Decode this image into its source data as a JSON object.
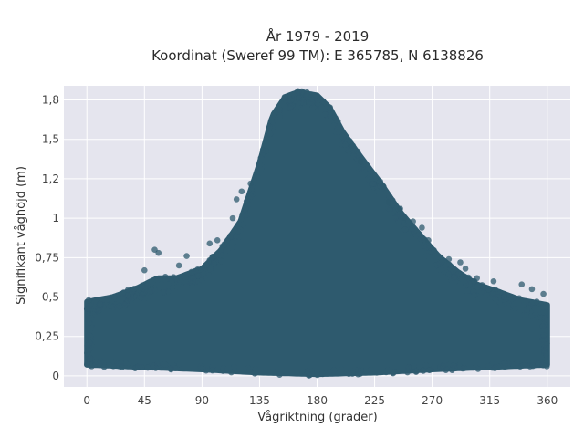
{
  "chart_data": {
    "type": "scatter",
    "title_line1": "År 1979 - 2019",
    "title_line2": "Koordinat (Sweref 99 TM): E 365785, N 6138826",
    "xlabel": "Vågriktning (grader)",
    "ylabel": "Signifikant våghöjd (m)",
    "xlim": [
      -18,
      378
    ],
    "ylim": [
      -0.07,
      1.84
    ],
    "x_ticks": [
      0,
      45,
      90,
      135,
      180,
      225,
      270,
      315,
      360
    ],
    "x_tick_labels": [
      "0",
      "45",
      "90",
      "135",
      "180",
      "225",
      "270",
      "315",
      "360"
    ],
    "y_ticks": [
      0,
      0.25,
      0.5,
      0.75,
      1,
      1.25,
      1.5,
      1.75
    ],
    "y_tick_labels": [
      "0",
      "0,25",
      "0,5",
      "0,75",
      "1",
      "1,2",
      "1,5",
      "1,8"
    ],
    "grid": true,
    "marker_color": "#2e5a6e",
    "background_color": "#e5e5ee",
    "upper_envelope": [
      [
        0,
        0.47
      ],
      [
        20,
        0.5
      ],
      [
        40,
        0.56
      ],
      [
        55,
        0.62
      ],
      [
        70,
        0.62
      ],
      [
        90,
        0.68
      ],
      [
        105,
        0.8
      ],
      [
        120,
        0.98
      ],
      [
        135,
        1.35
      ],
      [
        145,
        1.65
      ],
      [
        155,
        1.77
      ],
      [
        165,
        1.8
      ],
      [
        180,
        1.78
      ],
      [
        190,
        1.7
      ],
      [
        200,
        1.55
      ],
      [
        215,
        1.38
      ],
      [
        230,
        1.22
      ],
      [
        245,
        1.04
      ],
      [
        260,
        0.9
      ],
      [
        275,
        0.76
      ],
      [
        290,
        0.66
      ],
      [
        305,
        0.58
      ],
      [
        320,
        0.54
      ],
      [
        340,
        0.48
      ],
      [
        360,
        0.45
      ]
    ],
    "lower_envelope": [
      [
        0,
        0.07
      ],
      [
        90,
        0.04
      ],
      [
        135,
        0.02
      ],
      [
        180,
        0.01
      ],
      [
        225,
        0.02
      ],
      [
        270,
        0.04
      ],
      [
        360,
        0.07
      ]
    ],
    "outlier_points": [
      [
        53,
        0.8
      ],
      [
        56,
        0.78
      ],
      [
        45,
        0.67
      ],
      [
        72,
        0.7
      ],
      [
        78,
        0.76
      ],
      [
        96,
        0.84
      ],
      [
        102,
        0.86
      ],
      [
        114,
        1.0
      ],
      [
        117,
        1.12
      ],
      [
        121,
        1.17
      ],
      [
        128,
        1.22
      ],
      [
        208,
        1.46
      ],
      [
        214,
        1.36
      ],
      [
        232,
        1.2
      ],
      [
        236,
        1.1
      ],
      [
        245,
        1.06
      ],
      [
        248,
        1.0
      ],
      [
        255,
        0.98
      ],
      [
        262,
        0.94
      ],
      [
        267,
        0.86
      ],
      [
        283,
        0.74
      ],
      [
        292,
        0.72
      ],
      [
        296,
        0.68
      ],
      [
        305,
        0.62
      ],
      [
        318,
        0.6
      ],
      [
        340,
        0.58
      ],
      [
        348,
        0.55
      ],
      [
        357,
        0.52
      ]
    ]
  }
}
